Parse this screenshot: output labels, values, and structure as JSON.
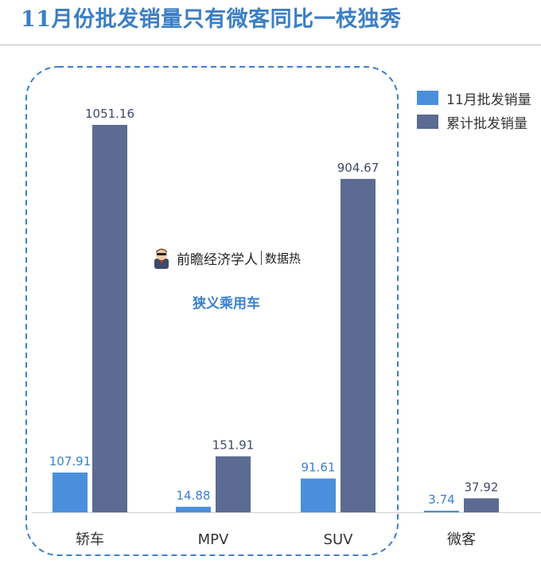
{
  "title": "11月份批发销量只有微客同比一枝独秀",
  "badge": {
    "name": "前瞻经济学人",
    "sub": "数据热"
  },
  "group_label": "狭义乘用车",
  "colors": {
    "series1": "#4a8fdc",
    "series2": "#5b6b92",
    "title": "#3c7fc4",
    "dashed": "#3a7fd0"
  },
  "chart_data": {
    "type": "bar",
    "categories": [
      "轿车",
      "MPV",
      "SUV",
      "微客"
    ],
    "series": [
      {
        "name": "11月批发销量",
        "values": [
          107.91,
          14.88,
          91.61,
          3.74
        ],
        "labels": [
          "107.91",
          "14.88",
          "91.61",
          "3.74"
        ]
      },
      {
        "name": "累计批发销量",
        "values": [
          1051.16,
          151.91,
          904.67,
          37.92
        ],
        "labels": [
          "1051.16",
          "151.91",
          "904.67",
          "37.92"
        ]
      }
    ],
    "ylim": [
      0,
      1051.16
    ],
    "legend": "top-right",
    "grid": false
  }
}
